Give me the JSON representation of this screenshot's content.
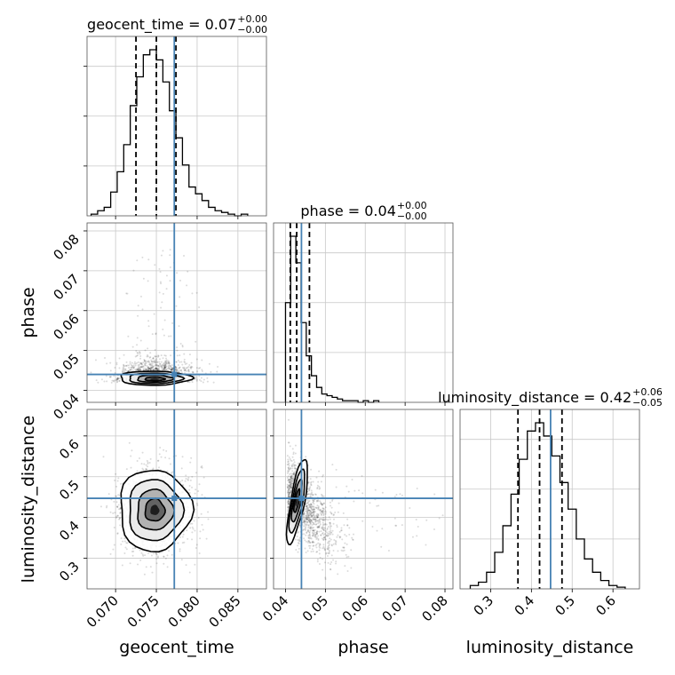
{
  "chart_data": {
    "type": "corner",
    "parameters": [
      "geocent_time",
      "phase",
      "luminosity_distance"
    ],
    "axis_labels": {
      "x": [
        "geocent_time",
        "phase",
        "luminosity_distance"
      ],
      "y": [
        "",
        "phase",
        "luminosity_distance"
      ]
    },
    "ranges": {
      "geocent_time": [
        0.0665,
        0.0885
      ],
      "phase": [
        0.037,
        0.082
      ],
      "luminosity_distance": [
        0.225,
        0.665
      ]
    },
    "ticks": {
      "geocent_time": [
        0.07,
        0.075,
        0.08,
        0.085
      ],
      "phase": [
        0.04,
        0.05,
        0.06,
        0.07,
        0.08
      ],
      "luminosity_distance": [
        0.3,
        0.4,
        0.5,
        0.6
      ]
    },
    "tick_labels": {
      "geocent_time": [
        "0.070",
        "0.075",
        "0.080",
        "0.085"
      ],
      "phase": [
        "0.04",
        "0.05",
        "0.06",
        "0.07",
        "0.08"
      ],
      "luminosity_distance": [
        "0.3",
        "0.4",
        "0.5",
        "0.6"
      ]
    },
    "truths": {
      "geocent_time": 0.0772,
      "phase": 0.044,
      "luminosity_distance": 0.447
    },
    "quantiles": {
      "geocent_time": [
        0.0725,
        0.075,
        0.0774
      ],
      "phase": [
        0.0412,
        0.0428,
        0.046
      ],
      "luminosity_distance": [
        0.367,
        0.42,
        0.475
      ]
    },
    "titles": {
      "geocent_time": {
        "main": "geocent_time = 0.07",
        "sup": "+0.00",
        "sub": "−0.00"
      },
      "phase": {
        "main": "phase = 0.04",
        "sup": "+0.00",
        "sub": "−0.00"
      },
      "luminosity_distance": {
        "main": "luminosity_distance = 0.42",
        "sup": "+0.06",
        "sub": "−0.05"
      }
    },
    "histograms": {
      "geocent_time": {
        "edges": [
          0.067,
          0.0678,
          0.0686,
          0.0694,
          0.0702,
          0.071,
          0.0718,
          0.0726,
          0.0734,
          0.0742,
          0.075,
          0.0758,
          0.0766,
          0.0774,
          0.0782,
          0.079,
          0.0798,
          0.0806,
          0.0814,
          0.0822,
          0.083,
          0.0838,
          0.0846,
          0.0854,
          0.0862
        ],
        "counts": [
          1,
          3,
          5,
          14,
          26,
          42,
          65,
          82,
          95,
          98,
          92,
          79,
          62,
          46,
          30,
          17,
          13,
          9,
          5,
          3,
          2,
          1,
          0,
          1
        ]
      },
      "phase": {
        "edges": [
          0.04,
          0.0413,
          0.0426,
          0.0439,
          0.0452,
          0.0465,
          0.0478,
          0.0491,
          0.0504,
          0.0517,
          0.053,
          0.0543,
          0.0556,
          0.0569,
          0.0582,
          0.0595,
          0.0608,
          0.0621,
          0.0634
        ],
        "counts": [
          60,
          100,
          84,
          48,
          28,
          16,
          9,
          5,
          4,
          3,
          2,
          1,
          1,
          1,
          0,
          1,
          0,
          1
        ]
      },
      "luminosity_distance": {
        "edges": [
          0.25,
          0.27,
          0.29,
          0.31,
          0.33,
          0.35,
          0.37,
          0.39,
          0.41,
          0.43,
          0.45,
          0.47,
          0.49,
          0.51,
          0.53,
          0.55,
          0.57,
          0.59,
          0.61,
          0.63
        ],
        "counts": [
          2,
          4,
          10,
          22,
          38,
          57,
          78,
          95,
          100,
          92,
          80,
          64,
          48,
          30,
          18,
          10,
          5,
          2,
          1
        ]
      }
    },
    "density_2d": [
      {
        "x": "geocent_time",
        "y": "phase",
        "center": [
          0.0748,
          0.0428
        ],
        "spread": [
          0.0022,
          0.0016
        ]
      },
      {
        "x": "geocent_time",
        "y": "luminosity_distance",
        "center": [
          0.0748,
          0.418
        ],
        "spread": [
          0.0022,
          0.05
        ]
      },
      {
        "x": "phase",
        "y": "luminosity_distance",
        "center": [
          0.0428,
          0.432
        ],
        "spread": [
          0.0016,
          0.055
        ]
      }
    ]
  }
}
